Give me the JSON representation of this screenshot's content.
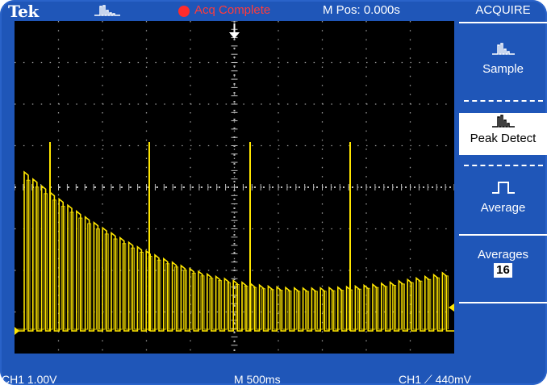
{
  "header": {
    "brand": "Tek",
    "acquire_mode_icon": "peak-detect-icon",
    "status": "Acq Complete",
    "position": "M Pos: 0.000s"
  },
  "footer": {
    "channel_scale": "CH1  1.00V",
    "timebase": "M 500ms",
    "trigger": "CH1  ⟋  440mV"
  },
  "waveform": {
    "channel_marker": "1",
    "color": "#ffe600",
    "grid_divisions": {
      "x": 10,
      "y": 8
    }
  },
  "menu": {
    "title": "ACQUIRE",
    "buttons": [
      {
        "label": "Sample",
        "icon": "sample-icon",
        "selected": false
      },
      {
        "label": "Peak Detect",
        "icon": "peak-detect-icon",
        "selected": true
      },
      {
        "label": "Average",
        "icon": "average-icon",
        "selected": false
      }
    ],
    "averages_label": "Averages",
    "averages_value": "16"
  },
  "colors": {
    "bezel": "#1f56b8",
    "screen": "#000000",
    "trace": "#ffe600",
    "status": "#ff2b2b"
  }
}
